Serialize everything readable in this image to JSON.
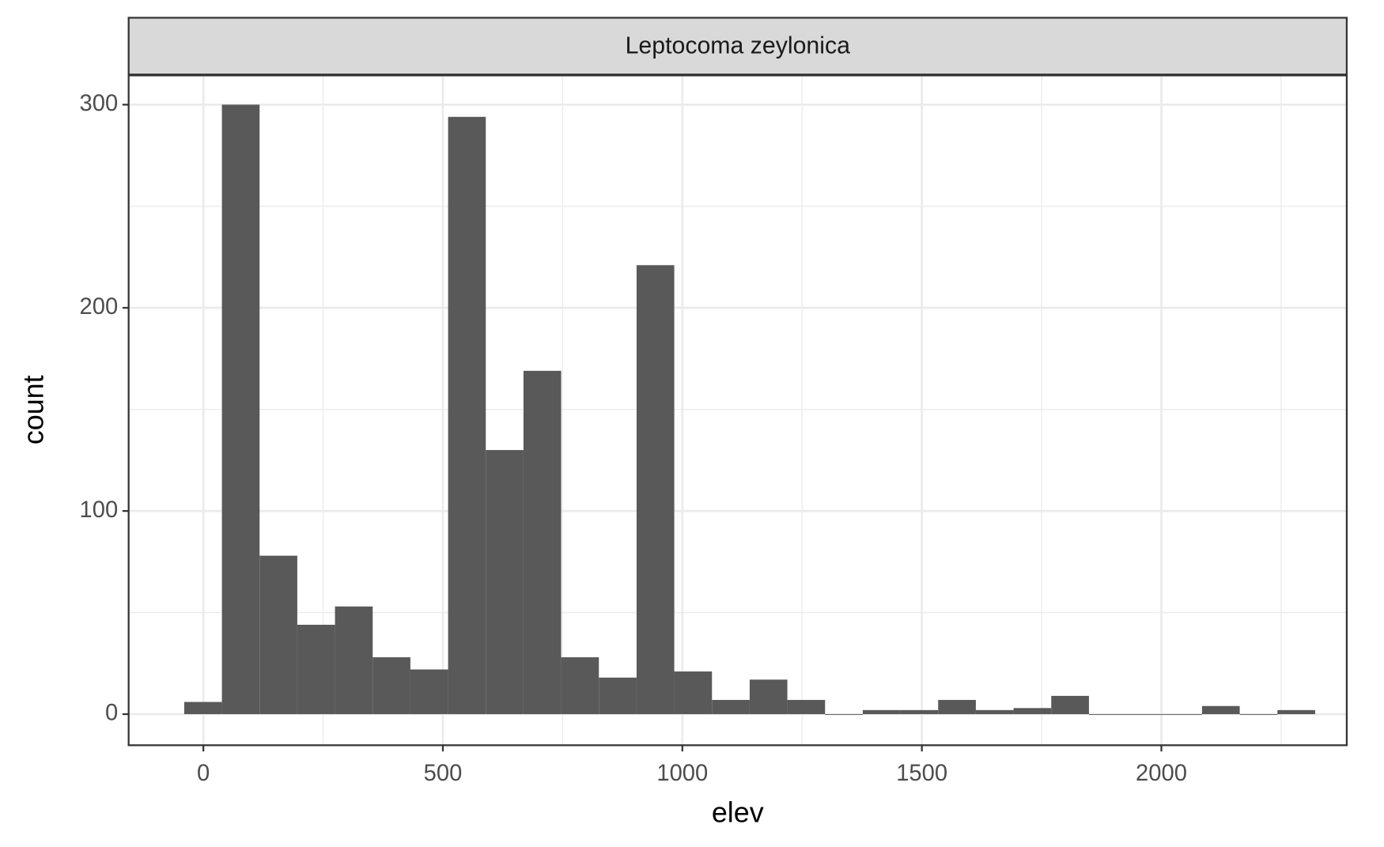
{
  "chart_data": {
    "type": "histogram",
    "strip_label": "Leptocoma zeylonica",
    "x_label": "elev",
    "y_label": "count",
    "bins": [
      -40,
      38.7,
      117.4,
      196.1,
      274.8,
      353.5,
      432.2,
      510.9,
      589.6,
      668.3,
      747,
      825.7,
      904.4,
      983.1,
      1061.8,
      1140.5,
      1219.2,
      1297.9,
      1376.6,
      1455.3,
      1534,
      1612.7,
      1691.4,
      1770.1,
      1848.8,
      1927.5,
      2006.2,
      2084.9,
      2163.6,
      2242.3,
      2321
    ],
    "values": [
      6,
      300,
      78,
      44,
      53,
      28,
      22,
      294,
      130,
      169,
      28,
      18,
      221,
      21,
      7,
      17,
      7,
      0,
      2,
      2,
      7,
      2,
      3,
      9,
      0,
      0,
      0,
      4,
      0,
      2
    ],
    "color": "#595959",
    "xlim": [
      -156,
      2387
    ],
    "ylim": [
      -15.3,
      314.4
    ],
    "xticks": [
      0,
      500,
      1000,
      1500,
      2000
    ],
    "yticks": [
      0,
      100,
      200,
      300
    ],
    "grid": true
  }
}
